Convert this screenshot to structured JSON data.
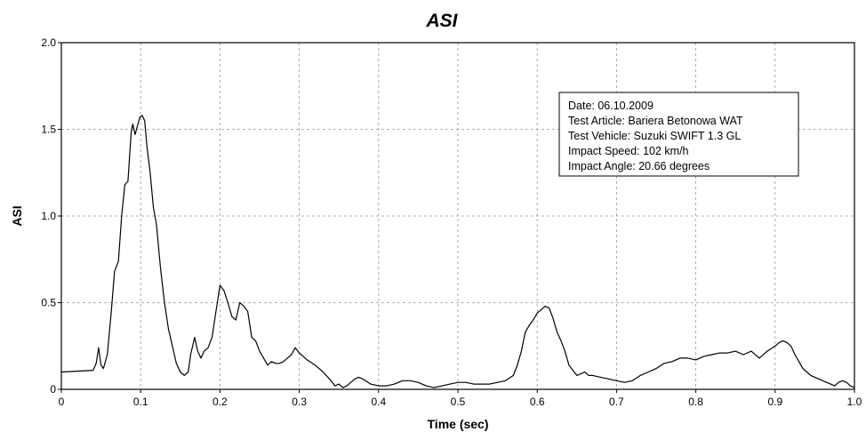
{
  "chart_data": {
    "type": "line",
    "title": "ASI",
    "xlabel": "Time (sec)",
    "ylabel": "ASI",
    "xlim": [
      0,
      1.0
    ],
    "ylim": [
      0,
      2.0
    ],
    "xticks": [
      0,
      0.1,
      0.2,
      0.3,
      0.4,
      0.5,
      0.6,
      0.7,
      0.8,
      0.9,
      1.0
    ],
    "xtick_labels": [
      "0",
      "0.1",
      "0.2",
      "0.3",
      "0.4",
      "0.5",
      "0.6",
      "0.7",
      "0.8",
      "0.9",
      "1.0"
    ],
    "yticks": [
      0,
      0.5,
      1.0,
      1.5,
      2.0
    ],
    "ytick_labels": [
      "0",
      "0.5",
      "1.0",
      "1.5",
      "2.0"
    ],
    "grid": true,
    "annotation": {
      "lines": [
        "Date: 06.10.2009",
        "Test Article: Bariera Betonowa WAT",
        "Test Vehicle: Suzuki SWIFT 1.3 GL",
        "Impact Speed: 102 km/h",
        "Impact Angle: 20.66 degrees"
      ],
      "placement": "top-right"
    },
    "series": [
      {
        "color": "#000000",
        "x": [
          0,
          0.04,
          0.044,
          0.047,
          0.05,
          0.053,
          0.058,
          0.063,
          0.067,
          0.072,
          0.076,
          0.08,
          0.084,
          0.088,
          0.09,
          0.093,
          0.096,
          0.099,
          0.102,
          0.105,
          0.108,
          0.112,
          0.116,
          0.12,
          0.125,
          0.13,
          0.135,
          0.14,
          0.145,
          0.15,
          0.155,
          0.16,
          0.163,
          0.168,
          0.172,
          0.176,
          0.18,
          0.185,
          0.19,
          0.195,
          0.2,
          0.205,
          0.21,
          0.215,
          0.22,
          0.225,
          0.23,
          0.235,
          0.24,
          0.245,
          0.25,
          0.255,
          0.26,
          0.265,
          0.27,
          0.275,
          0.28,
          0.285,
          0.29,
          0.295,
          0.3,
          0.31,
          0.32,
          0.33,
          0.34,
          0.345,
          0.35,
          0.355,
          0.36,
          0.365,
          0.37,
          0.375,
          0.38,
          0.39,
          0.4,
          0.41,
          0.42,
          0.43,
          0.44,
          0.45,
          0.46,
          0.47,
          0.48,
          0.49,
          0.5,
          0.51,
          0.52,
          0.53,
          0.54,
          0.55,
          0.56,
          0.57,
          0.575,
          0.58,
          0.585,
          0.59,
          0.595,
          0.6,
          0.605,
          0.61,
          0.615,
          0.62,
          0.625,
          0.63,
          0.635,
          0.64,
          0.645,
          0.65,
          0.655,
          0.66,
          0.665,
          0.67,
          0.68,
          0.69,
          0.7,
          0.71,
          0.72,
          0.73,
          0.74,
          0.75,
          0.76,
          0.77,
          0.78,
          0.79,
          0.8,
          0.81,
          0.82,
          0.83,
          0.84,
          0.85,
          0.86,
          0.87,
          0.88,
          0.89,
          0.9,
          0.905,
          0.91,
          0.915,
          0.92,
          0.925,
          0.93,
          0.935,
          0.94,
          0.945,
          0.95,
          0.955,
          0.96,
          0.965,
          0.97,
          0.975,
          0.98,
          0.985,
          0.99,
          0.995,
          1.0
        ],
        "y": [
          0.1,
          0.11,
          0.15,
          0.24,
          0.14,
          0.12,
          0.2,
          0.45,
          0.68,
          0.74,
          1.0,
          1.18,
          1.2,
          1.48,
          1.53,
          1.47,
          1.52,
          1.57,
          1.58,
          1.55,
          1.4,
          1.25,
          1.05,
          0.95,
          0.7,
          0.5,
          0.35,
          0.25,
          0.15,
          0.1,
          0.08,
          0.1,
          0.2,
          0.3,
          0.22,
          0.18,
          0.22,
          0.24,
          0.3,
          0.45,
          0.6,
          0.57,
          0.5,
          0.42,
          0.4,
          0.5,
          0.48,
          0.45,
          0.3,
          0.28,
          0.22,
          0.18,
          0.14,
          0.16,
          0.15,
          0.15,
          0.16,
          0.18,
          0.2,
          0.24,
          0.21,
          0.17,
          0.14,
          0.1,
          0.05,
          0.02,
          0.03,
          0.01,
          0.02,
          0.04,
          0.06,
          0.07,
          0.06,
          0.03,
          0.02,
          0.02,
          0.03,
          0.05,
          0.05,
          0.04,
          0.02,
          0.01,
          0.02,
          0.03,
          0.04,
          0.04,
          0.03,
          0.03,
          0.03,
          0.04,
          0.05,
          0.08,
          0.14,
          0.22,
          0.33,
          0.37,
          0.4,
          0.44,
          0.46,
          0.48,
          0.47,
          0.41,
          0.33,
          0.28,
          0.22,
          0.14,
          0.11,
          0.08,
          0.09,
          0.1,
          0.08,
          0.08,
          0.07,
          0.06,
          0.05,
          0.04,
          0.05,
          0.08,
          0.1,
          0.12,
          0.15,
          0.16,
          0.18,
          0.18,
          0.17,
          0.19,
          0.2,
          0.21,
          0.21,
          0.22,
          0.2,
          0.22,
          0.18,
          0.22,
          0.25,
          0.27,
          0.28,
          0.27,
          0.25,
          0.2,
          0.16,
          0.12,
          0.1,
          0.08,
          0.07,
          0.06,
          0.05,
          0.04,
          0.03,
          0.02,
          0.04,
          0.05,
          0.04,
          0.02,
          0.01
        ]
      }
    ]
  }
}
